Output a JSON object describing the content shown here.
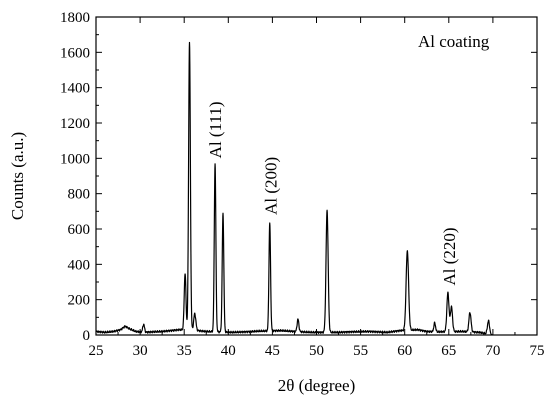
{
  "chart_data": {
    "type": "line",
    "title": "",
    "xlabel": "2θ (degree)",
    "ylabel": "Counts (a.u.)",
    "xlim": [
      25,
      75
    ],
    "ylim": [
      0,
      1800
    ],
    "xticks": [
      25,
      30,
      35,
      40,
      45,
      50,
      55,
      60,
      65,
      70,
      75
    ],
    "yticks": [
      0,
      200,
      400,
      600,
      800,
      1000,
      1200,
      1400,
      1600,
      1800
    ],
    "grid": false,
    "legend": {
      "text": "Al coating",
      "position": "top-right"
    },
    "annotations": [
      {
        "text": "Al (111)",
        "x": 38.5,
        "y": 1000,
        "rotation": -90
      },
      {
        "text": "Al (200)",
        "x": 44.8,
        "y": 680,
        "rotation": -90
      },
      {
        "text": "Al (220)",
        "x": 65.0,
        "y": 280,
        "rotation": -90
      }
    ],
    "series": [
      {
        "color": "#000000",
        "baseline": [
          [
            25.0,
            20
          ],
          [
            26.0,
            15
          ],
          [
            27.0,
            20
          ],
          [
            27.8,
            30
          ],
          [
            28.3,
            50
          ],
          [
            28.8,
            35
          ],
          [
            29.5,
            20
          ],
          [
            30.5,
            15
          ],
          [
            31.5,
            18
          ],
          [
            32.5,
            20
          ],
          [
            33.5,
            25
          ],
          [
            34.5,
            30
          ],
          [
            36.5,
            25
          ],
          [
            37.5,
            20
          ],
          [
            40.5,
            15
          ],
          [
            42.0,
            18
          ],
          [
            43.5,
            22
          ],
          [
            46.0,
            25
          ],
          [
            47.5,
            20
          ],
          [
            49.5,
            15
          ],
          [
            52.5,
            15
          ],
          [
            54.0,
            18
          ],
          [
            56.0,
            20
          ],
          [
            58.0,
            15
          ],
          [
            59.5,
            25
          ],
          [
            61.5,
            30
          ],
          [
            62.5,
            20
          ],
          [
            63.5,
            18
          ],
          [
            66.5,
            20
          ],
          [
            68.5,
            15
          ],
          [
            70.0,
            0
          ]
        ],
        "peaks": [
          {
            "center": 30.4,
            "height": 45,
            "width": 0.1
          },
          {
            "center": 35.1,
            "height": 320,
            "width": 0.1
          },
          {
            "center": 35.6,
            "height": 1630,
            "width": 0.1
          },
          {
            "center": 36.2,
            "height": 95,
            "width": 0.12
          },
          {
            "center": 38.5,
            "height": 950,
            "width": 0.09
          },
          {
            "center": 39.4,
            "height": 670,
            "width": 0.09
          },
          {
            "center": 44.7,
            "height": 610,
            "width": 0.09
          },
          {
            "center": 47.9,
            "height": 70,
            "width": 0.1
          },
          {
            "center": 51.2,
            "height": 690,
            "width": 0.12
          },
          {
            "center": 60.3,
            "height": 450,
            "width": 0.14
          },
          {
            "center": 63.4,
            "height": 50,
            "width": 0.1
          },
          {
            "center": 64.9,
            "height": 220,
            "width": 0.12
          },
          {
            "center": 65.3,
            "height": 140,
            "width": 0.12
          },
          {
            "center": 67.4,
            "height": 110,
            "width": 0.12
          },
          {
            "center": 69.5,
            "height": 75,
            "width": 0.12
          }
        ]
      }
    ]
  }
}
